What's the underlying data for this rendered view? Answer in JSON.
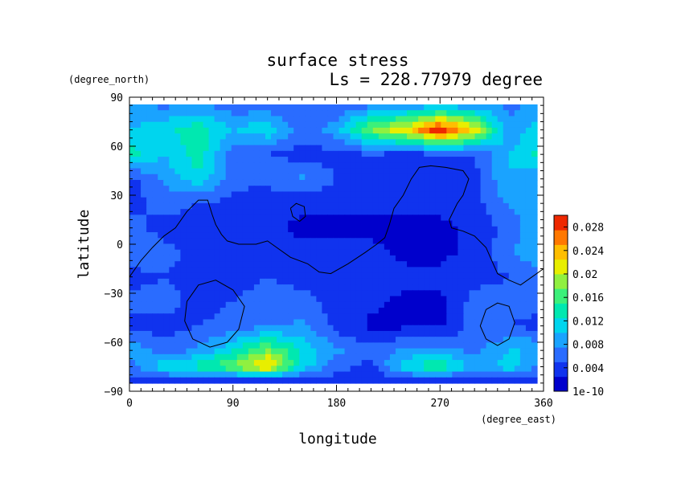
{
  "chart_data": {
    "type": "heatmap",
    "title": "surface stress",
    "subtitle": "Ls = 228.77979 degree",
    "xlabel": "longitude",
    "ylabel": "latitude",
    "x_unit": "(degree_east)",
    "y_unit": "(degree_north)",
    "xlim": [
      0,
      360
    ],
    "ylim": [
      -90,
      90
    ],
    "x_ticks": [
      "0",
      "90",
      "180",
      "270",
      "360"
    ],
    "y_ticks": [
      "90",
      "60",
      "30",
      "0",
      "−30",
      "−60",
      "−90"
    ],
    "colorbar": {
      "min": 1e-10,
      "max": 0.03,
      "tick_values": [
        1e-10,
        0.004,
        0.008,
        0.012,
        0.016,
        0.02,
        0.024,
        0.028
      ],
      "tick_labels": [
        "1e-10",
        "0.004",
        "0.008",
        "0.012",
        "0.016",
        "0.02",
        "0.024",
        "0.028"
      ],
      "colors": [
        "#0000cc",
        "#1033ee",
        "#2a6cff",
        "#1aa3ff",
        "#00d5ee",
        "#00e8b0",
        "#3cf07a",
        "#90f040",
        "#e8ee00",
        "#ffbe00",
        "#ff7800",
        "#ee2800"
      ]
    },
    "field": {
      "lon": [
        0,
        30,
        60,
        90,
        120,
        150,
        180,
        210,
        240,
        270,
        300,
        330,
        360
      ],
      "lat": [
        85,
        70,
        55,
        40,
        25,
        10,
        -5,
        -20,
        -35,
        -50,
        -65,
        -75,
        -83
      ],
      "values": [
        [
          0.008,
          0.007,
          0.008,
          0.006,
          0.006,
          0.005,
          0.005,
          0.007,
          0.008,
          0.009,
          0.008,
          0.007,
          0.008
        ],
        [
          0.01,
          0.012,
          0.014,
          0.01,
          0.012,
          0.006,
          0.009,
          0.018,
          0.022,
          0.03,
          0.022,
          0.008,
          0.012
        ],
        [
          0.014,
          0.01,
          0.014,
          0.006,
          0.005,
          0.004,
          0.004,
          0.005,
          0.004,
          0.005,
          0.005,
          0.01,
          0.014
        ],
        [
          0.004,
          0.008,
          0.012,
          0.006,
          0.006,
          0.008,
          0.005,
          0.003,
          0.003,
          0.004,
          0.004,
          0.01,
          0.008
        ],
        [
          0.004,
          0.006,
          0.005,
          0.004,
          0.003,
          0.003,
          0.003,
          0.003,
          0.003,
          0.003,
          0.004,
          0.008,
          0.008
        ],
        [
          0.006,
          0.004,
          0.004,
          0.004,
          0.003,
          0.002,
          0.002,
          0.002,
          0.002,
          0.002,
          0.003,
          0.006,
          0.01
        ],
        [
          0.007,
          0.006,
          0.004,
          0.004,
          0.004,
          0.003,
          0.003,
          0.003,
          0.002,
          0.002,
          0.003,
          0.007,
          0.011
        ],
        [
          0.004,
          0.005,
          0.004,
          0.004,
          0.005,
          0.004,
          0.004,
          0.004,
          0.003,
          0.003,
          0.004,
          0.005,
          0.006
        ],
        [
          0.006,
          0.006,
          0.004,
          0.005,
          0.006,
          0.006,
          0.004,
          0.003,
          0.002,
          0.002,
          0.006,
          0.006,
          0.006
        ],
        [
          0.004,
          0.004,
          0.005,
          0.006,
          0.007,
          0.008,
          0.004,
          0.002,
          0.002,
          0.002,
          0.006,
          0.005,
          0.004
        ],
        [
          0.01,
          0.006,
          0.008,
          0.012,
          0.018,
          0.012,
          0.008,
          0.006,
          0.008,
          0.008,
          0.007,
          0.01,
          0.01
        ],
        [
          0.006,
          0.012,
          0.014,
          0.018,
          0.024,
          0.012,
          0.006,
          0.004,
          0.012,
          0.016,
          0.008,
          0.012,
          0.006
        ],
        [
          0.004,
          0.004,
          0.005,
          0.004,
          0.004,
          0.003,
          0.004,
          0.004,
          0.004,
          0.004,
          0.004,
          0.004,
          0.004
        ]
      ]
    },
    "contours": [
      [
        [
          0,
          -20
        ],
        [
          10,
          -10
        ],
        [
          20,
          -2
        ],
        [
          30,
          5
        ],
        [
          40,
          10
        ],
        [
          50,
          20
        ],
        [
          60,
          27
        ],
        [
          68,
          27
        ],
        [
          72,
          18
        ],
        [
          75,
          12
        ],
        [
          80,
          6
        ],
        [
          85,
          2
        ],
        [
          95,
          0
        ],
        [
          110,
          0
        ],
        [
          120,
          2
        ],
        [
          130,
          -3
        ],
        [
          140,
          -8
        ],
        [
          155,
          -12
        ],
        [
          165,
          -17
        ],
        [
          175,
          -18
        ],
        [
          190,
          -12
        ],
        [
          205,
          -5
        ],
        [
          215,
          0
        ],
        [
          222,
          4
        ],
        [
          226,
          12
        ],
        [
          230,
          22
        ],
        [
          238,
          30
        ],
        [
          245,
          40
        ],
        [
          252,
          47
        ],
        [
          262,
          48
        ],
        [
          275,
          47
        ],
        [
          290,
          45
        ],
        [
          295,
          40
        ],
        [
          290,
          30
        ],
        [
          285,
          25
        ],
        [
          278,
          15
        ],
        [
          280,
          10
        ],
        [
          290,
          8
        ],
        [
          300,
          5
        ],
        [
          310,
          -2
        ],
        [
          315,
          -10
        ],
        [
          320,
          -18
        ],
        [
          330,
          -22
        ],
        [
          340,
          -25
        ],
        [
          350,
          -20
        ],
        [
          360,
          -15
        ]
      ],
      [
        [
          140,
          22
        ],
        [
          145,
          25
        ],
        [
          152,
          23
        ],
        [
          153,
          17
        ],
        [
          148,
          14
        ],
        [
          142,
          17
        ],
        [
          140,
          22
        ]
      ],
      [
        [
          50,
          -35
        ],
        [
          60,
          -25
        ],
        [
          75,
          -22
        ],
        [
          90,
          -28
        ],
        [
          100,
          -38
        ],
        [
          95,
          -52
        ],
        [
          85,
          -60
        ],
        [
          70,
          -63
        ],
        [
          55,
          -58
        ],
        [
          48,
          -47
        ],
        [
          50,
          -35
        ]
      ],
      [
        [
          310,
          -40
        ],
        [
          320,
          -36
        ],
        [
          330,
          -38
        ],
        [
          335,
          -48
        ],
        [
          330,
          -58
        ],
        [
          320,
          -62
        ],
        [
          310,
          -58
        ],
        [
          305,
          -50
        ],
        [
          310,
          -40
        ]
      ]
    ]
  }
}
